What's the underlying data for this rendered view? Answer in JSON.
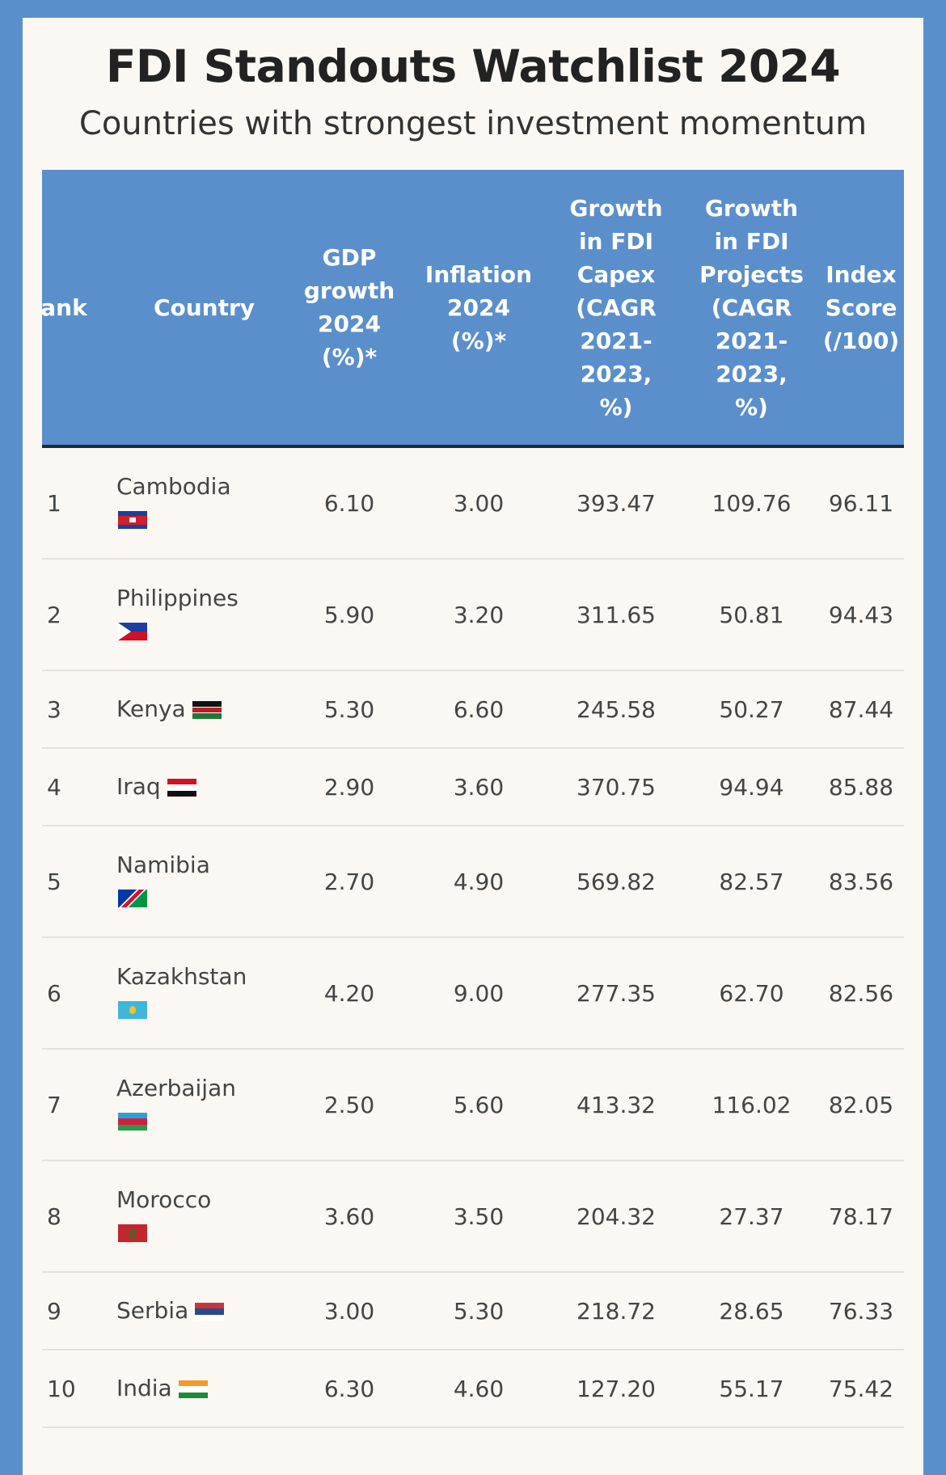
{
  "title": "FDI Standouts Watchlist 2024",
  "subtitle": "Countries with strongest investment momentum",
  "columns": {
    "rank": "ank",
    "country": "Country",
    "gdp": [
      "GDP",
      "growth",
      "2024",
      "(%)*"
    ],
    "inflation": [
      "Inflation",
      "2024",
      "(%)*"
    ],
    "capex": [
      "Growth",
      "in FDI",
      "Capex",
      "(CAGR",
      "2021-",
      "2023,",
      "%)"
    ],
    "projects": [
      "Growth",
      "in FDI",
      "Projects",
      "(CAGR",
      "2021-",
      "2023,",
      "%)"
    ],
    "index": [
      "Index",
      "Score",
      "(/100)"
    ]
  },
  "rows": [
    {
      "rank": "1",
      "country": "Cambodia",
      "flag": "cambodia-flag-icon",
      "gdp": "6.10",
      "inflation": "3.00",
      "capex": "393.47",
      "projects": "109.76",
      "index": "96.11"
    },
    {
      "rank": "2",
      "country": "Philippines",
      "flag": "philippines-flag-icon",
      "gdp": "5.90",
      "inflation": "3.20",
      "capex": "311.65",
      "projects": "50.81",
      "index": "94.43"
    },
    {
      "rank": "3",
      "country": "Kenya",
      "flag": "kenya-flag-icon",
      "gdp": "5.30",
      "inflation": "6.60",
      "capex": "245.58",
      "projects": "50.27",
      "index": "87.44"
    },
    {
      "rank": "4",
      "country": "Iraq",
      "flag": "iraq-flag-icon",
      "gdp": "2.90",
      "inflation": "3.60",
      "capex": "370.75",
      "projects": "94.94",
      "index": "85.88"
    },
    {
      "rank": "5",
      "country": "Namibia",
      "flag": "namibia-flag-icon",
      "gdp": "2.70",
      "inflation": "4.90",
      "capex": "569.82",
      "projects": "82.57",
      "index": "83.56"
    },
    {
      "rank": "6",
      "country": "Kazakhstan",
      "flag": "kazakhstan-flag-icon",
      "gdp": "4.20",
      "inflation": "9.00",
      "capex": "277.35",
      "projects": "62.70",
      "index": "82.56"
    },
    {
      "rank": "7",
      "country": "Azerbaijan",
      "flag": "azerbaijan-flag-icon",
      "gdp": "2.50",
      "inflation": "5.60",
      "capex": "413.32",
      "projects": "116.02",
      "index": "82.05"
    },
    {
      "rank": "8",
      "country": "Morocco",
      "flag": "morocco-flag-icon",
      "gdp": "3.60",
      "inflation": "3.50",
      "capex": "204.32",
      "projects": "27.37",
      "index": "78.17"
    },
    {
      "rank": "9",
      "country": "Serbia",
      "flag": "serbia-flag-icon",
      "gdp": "3.00",
      "inflation": "5.30",
      "capex": "218.72",
      "projects": "28.65",
      "index": "76.33"
    },
    {
      "rank": "10",
      "country": "India",
      "flag": "india-flag-icon",
      "gdp": "6.30",
      "inflation": "4.60",
      "capex": "127.20",
      "projects": "55.17",
      "index": "75.42"
    }
  ],
  "colors": {
    "header_bg": "#5b8fcb",
    "page_bg": "#fbf8f3",
    "text": "#444444"
  }
}
